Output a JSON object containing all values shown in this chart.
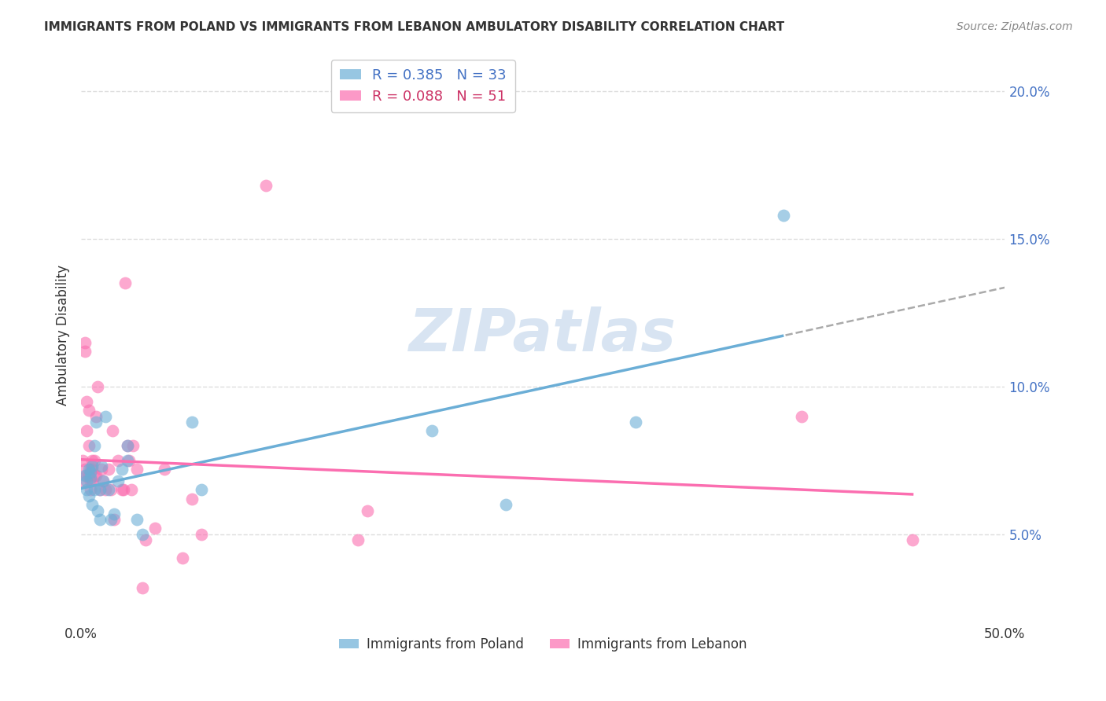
{
  "title": "IMMIGRANTS FROM POLAND VS IMMIGRANTS FROM LEBANON AMBULATORY DISABILITY CORRELATION CHART",
  "source": "Source: ZipAtlas.com",
  "ylabel": "Ambulatory Disability",
  "xlim": [
    0,
    0.5
  ],
  "ylim": [
    0.02,
    0.215
  ],
  "yticks_right": [
    0.05,
    0.1,
    0.15,
    0.2
  ],
  "ytick_right_labels": [
    "5.0%",
    "10.0%",
    "15.0%",
    "20.0%"
  ],
  "poland_color": "#6baed6",
  "lebanon_color": "#fb6eb0",
  "poland_R": 0.385,
  "poland_N": 33,
  "lebanon_R": 0.088,
  "lebanon_N": 51,
  "poland_scatter_x": [
    0.002,
    0.003,
    0.003,
    0.004,
    0.004,
    0.005,
    0.005,
    0.006,
    0.006,
    0.007,
    0.007,
    0.008,
    0.009,
    0.01,
    0.01,
    0.011,
    0.012,
    0.013,
    0.015,
    0.016,
    0.018,
    0.02,
    0.022,
    0.025,
    0.025,
    0.03,
    0.033,
    0.06,
    0.065,
    0.19,
    0.23,
    0.3,
    0.38
  ],
  "poland_scatter_y": [
    0.07,
    0.068,
    0.065,
    0.072,
    0.063,
    0.071,
    0.069,
    0.073,
    0.06,
    0.065,
    0.08,
    0.088,
    0.058,
    0.065,
    0.055,
    0.073,
    0.068,
    0.09,
    0.065,
    0.055,
    0.057,
    0.068,
    0.072,
    0.075,
    0.08,
    0.055,
    0.05,
    0.088,
    0.065,
    0.085,
    0.06,
    0.088,
    0.158
  ],
  "lebanon_scatter_x": [
    0.001,
    0.001,
    0.002,
    0.002,
    0.002,
    0.003,
    0.003,
    0.003,
    0.004,
    0.004,
    0.004,
    0.005,
    0.005,
    0.005,
    0.006,
    0.006,
    0.006,
    0.007,
    0.007,
    0.008,
    0.008,
    0.009,
    0.01,
    0.011,
    0.012,
    0.013,
    0.015,
    0.016,
    0.017,
    0.018,
    0.02,
    0.022,
    0.023,
    0.024,
    0.025,
    0.026,
    0.027,
    0.028,
    0.03,
    0.033,
    0.035,
    0.04,
    0.045,
    0.055,
    0.06,
    0.065,
    0.1,
    0.15,
    0.155,
    0.39,
    0.45
  ],
  "lebanon_scatter_y": [
    0.075,
    0.068,
    0.115,
    0.112,
    0.072,
    0.07,
    0.095,
    0.085,
    0.07,
    0.08,
    0.092,
    0.068,
    0.072,
    0.065,
    0.072,
    0.068,
    0.075,
    0.07,
    0.075,
    0.07,
    0.09,
    0.1,
    0.065,
    0.072,
    0.068,
    0.065,
    0.072,
    0.065,
    0.085,
    0.055,
    0.075,
    0.065,
    0.065,
    0.135,
    0.08,
    0.075,
    0.065,
    0.08,
    0.072,
    0.032,
    0.048,
    0.052,
    0.072,
    0.042,
    0.062,
    0.05,
    0.168,
    0.048,
    0.058,
    0.09,
    0.048
  ],
  "watermark": "ZIPatlas",
  "background_color": "#ffffff",
  "grid_color": "#dddddd",
  "poland_text_color": "#4472c4",
  "lebanon_text_color": "#cc3366",
  "right_axis_color": "#4472c4"
}
